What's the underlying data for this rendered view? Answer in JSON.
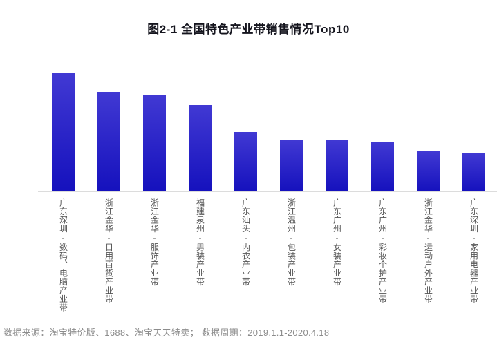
{
  "header": {
    "title": "图2-1 全国特色产业带销售情况Top10"
  },
  "chart_data": {
    "type": "bar",
    "title": "图2-1 全国特色产业带销售情况Top10",
    "categories": [
      "广东深圳-数码、电脑产业带",
      "浙江金华-日用百货产业带",
      "浙江金华-服饰产业带",
      "福建泉州-男装产业带",
      "广东汕头-内衣产业带",
      "浙江温州-包装产业带",
      "广东广州-女装产业带",
      "广东广州-彩妆个护产业带",
      "浙江金华-运动户外产业带",
      "广东深圳-家用电器产业带"
    ],
    "values": [
      100,
      84,
      82,
      73,
      50,
      44,
      44,
      42,
      34,
      33
    ],
    "xlabel": "",
    "ylabel": "",
    "ylim": [
      0,
      100
    ],
    "grid": false,
    "legend": false,
    "y_axis_visible": false,
    "bar_color_top": "#4139d3",
    "bar_color_bottom": "#1511bd",
    "axis_line_color": "#dcdcdc",
    "label_orientation": "vertical-upright"
  },
  "footer": {
    "source_note": "数据来源：淘宝特价版、1688、淘宝天天特卖； 数据周期：2019.1.1-2020.4.18"
  }
}
